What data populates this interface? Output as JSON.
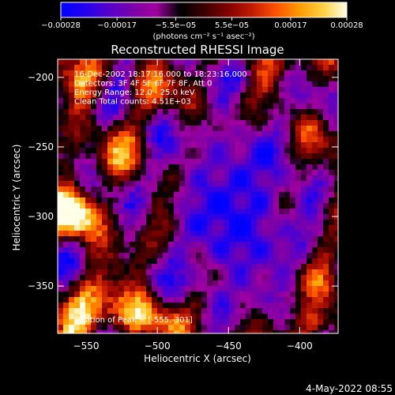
{
  "chart_data": {
    "type": "heatmap",
    "title": "Reconstructed RHESSI Image",
    "xlabel": "Heliocentric X (arcsec)",
    "ylabel": "Heliocentric Y (arcsec)",
    "xlim": [
      -570,
      -373
    ],
    "ylim": [
      -384,
      -187
    ],
    "x_ticks": [
      {
        "value": -550,
        "label": "−550"
      },
      {
        "value": -500,
        "label": "−500"
      },
      {
        "value": -450,
        "label": "−450"
      },
      {
        "value": -400,
        "label": "−400"
      }
    ],
    "y_ticks": [
      {
        "value": -200,
        "label": "−200"
      },
      {
        "value": -250,
        "label": "−250"
      },
      {
        "value": -300,
        "label": "−300"
      },
      {
        "value": -350,
        "label": "−350"
      }
    ],
    "colorbar": {
      "range": [
        -0.00028,
        0.00028
      ],
      "ticks": [
        {
          "value": -0.00028,
          "label": "−0.00028"
        },
        {
          "value": -0.00017,
          "label": "−0.00017"
        },
        {
          "value": -5.5e-05,
          "label": "−5.5e−05"
        },
        {
          "value": 5.5e-05,
          "label": "5.5e−05"
        },
        {
          "value": 0.00017,
          "label": "0.00017"
        },
        {
          "value": 0.00028,
          "label": "0.00028"
        }
      ],
      "unit_label": "(photons cm⁻² s⁻¹ asec⁻²)",
      "colors": [
        "#0000ff",
        "#2200ee",
        "#5500cc",
        "#7a00a8",
        "#a000a0",
        "#000000",
        "#3a0000",
        "#800000",
        "#c01a00",
        "#ff5000",
        "#ff9a00",
        "#ffd040",
        "#ffffe8"
      ]
    },
    "annotations": [
      "16-Dec-2002 18:17:16.000 to 18:23:16.000",
      "Detectors: 3F 4F 5F 6F 7F 8F, Att 0",
      "Energy Range: 12.0 - 25.0 keV",
      "Clean     Total counts: 4.51E+03"
    ],
    "peak_label": "Position of Peak = [-555,-301]",
    "peak": {
      "x": -555,
      "y": -301
    }
  },
  "footer": {
    "timestamp": "4-May-2022 08:55"
  }
}
